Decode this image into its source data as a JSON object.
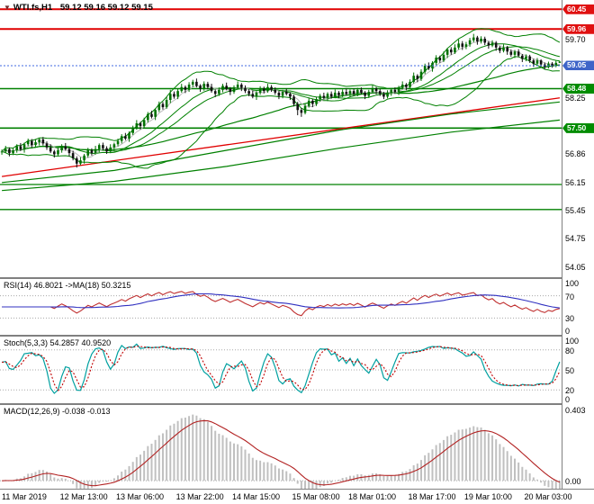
{
  "colors": {
    "bg": "#FFFFFF",
    "axis_text": "#000000",
    "frame": "#808080",
    "bull": "#007000",
    "bear": "#101010",
    "ma_fast": "#BBBBBB",
    "ma_green": "#008000",
    "bb": "#008000",
    "level_red": "#E00000",
    "level_green": "#008000",
    "bid": "#4169E1",
    "badge_red": "#E01010",
    "badge_green": "#008C00",
    "badge_blue": "#3E64C8",
    "rsi_line": "#C03030",
    "rsi_ma": "#3030C0",
    "stoch_k": "#00A0A0",
    "stoch_d": "#C00000",
    "macd_hist": "#C0C0C0",
    "macd_signal": "#B22222"
  },
  "main": {
    "title": "WTI.fs,H1",
    "ohlc": "59.12 59.16 59.12 59.15",
    "scale": {
      "max": 60.68,
      "min": 53.8
    },
    "axis_labels": [
      "59.70",
      "58.25",
      "56.86",
      "56.15",
      "55.45",
      "54.75",
      "54.05"
    ],
    "badges": [
      {
        "price": 60.45,
        "label": "60.45",
        "type": "red"
      },
      {
        "price": 59.96,
        "label": "59.96",
        "type": "red"
      },
      {
        "price": 59.05,
        "label": "59.05",
        "type": "blue"
      },
      {
        "price": 58.48,
        "label": "58.48",
        "type": "green"
      },
      {
        "price": 57.5,
        "label": "57.50",
        "type": "green"
      }
    ],
    "hlines": [
      {
        "price": 60.45,
        "color": "red",
        "width": 2
      },
      {
        "price": 59.96,
        "color": "red",
        "width": 2
      },
      {
        "price": 58.48,
        "color": "green",
        "width": 1.6
      },
      {
        "price": 57.5,
        "color": "green",
        "width": 1.6
      },
      {
        "price": 56.1,
        "color": "green",
        "width": 1.3
      },
      {
        "price": 55.48,
        "color": "green",
        "width": 1.3
      }
    ],
    "bid_line": 59.05,
    "trendline": {
      "from": [
        0,
        56.3
      ],
      "to": [
        149,
        58.25
      ],
      "color": "red"
    },
    "slow_lines": [
      {
        "points": [
          [
            0,
            56.15
          ],
          [
            30,
            56.45
          ],
          [
            60,
            56.95
          ],
          [
            90,
            57.45
          ],
          [
            120,
            57.85
          ],
          [
            149,
            58.15
          ]
        ]
      },
      {
        "points": [
          [
            0,
            55.95
          ],
          [
            30,
            56.18
          ],
          [
            60,
            56.55
          ],
          [
            90,
            57.0
          ],
          [
            120,
            57.4
          ],
          [
            149,
            57.7
          ]
        ]
      }
    ],
    "indicators": {
      "ma_fast": 5,
      "ma_mid": 13,
      "ma_slow": 55,
      "bb_period": 20,
      "bb_dev": 2
    }
  },
  "panels": {
    "rsi": {
      "label": "RSI(14) 46.8021 ->MA(18) 50.3215",
      "period": 14,
      "ma_period": 18,
      "levels": [
        70,
        30
      ],
      "scale": {
        "max": 100,
        "min": 0
      },
      "axis_labels": [
        {
          "text": "100",
          "value": 100
        },
        {
          "text": "70",
          "value": 70
        },
        {
          "text": "30",
          "value": 30
        },
        {
          "text": "0",
          "value": 0
        }
      ]
    },
    "stoch": {
      "label": "Stoch(5,3,3) 54.2857 40.9520",
      "k": 5,
      "slow": 3,
      "d": 3,
      "levels": [
        80,
        50,
        20
      ],
      "scale": {
        "max": 100,
        "min": 0
      },
      "axis_labels": [
        {
          "text": "100",
          "value": 100
        },
        {
          "text": "80",
          "value": 80
        },
        {
          "text": "50",
          "value": 50
        },
        {
          "text": "20",
          "value": 20
        },
        {
          "text": "0",
          "value": 0
        }
      ]
    },
    "macd": {
      "label": "MACD(12,26,9) -0.038 -0.013",
      "fast": 12,
      "slow": 26,
      "signal": 9,
      "levels": [
        0
      ],
      "scale": {
        "max": 0.428,
        "min": -0.045
      },
      "axis_labels": [
        {
          "text": "0.403",
          "value": 0.403
        },
        {
          "text": "0.00",
          "value": 0
        }
      ]
    }
  },
  "chart_data": {
    "type": "candlestick",
    "symbol": "WTI.fs",
    "timeframe": "H1",
    "title": "WTI.fs,H1 59.12 59.16 59.12 59.15",
    "ylim": [
      53.8,
      60.68
    ],
    "x_labels": [
      "11 Mar 2019",
      "12 Mar 13:00",
      "13 Mar 06:00",
      "13 Mar 22:00",
      "14 Mar 15:00",
      "15 Mar 08:00",
      "18 Mar 01:00",
      "18 Mar 17:00",
      "19 Mar 10:00",
      "20 Mar 03:00"
    ],
    "x_label_indices": [
      0,
      16,
      31,
      47,
      62,
      78,
      93,
      109,
      124,
      140
    ],
    "candles": [
      [
        56.9,
        56.97,
        56.84,
        56.92
      ],
      [
        56.92,
        57.06,
        56.88,
        56.98
      ],
      [
        56.98,
        57.02,
        56.8,
        56.88
      ],
      [
        56.88,
        57.01,
        56.83,
        56.95
      ],
      [
        56.95,
        57.1,
        56.89,
        57.05
      ],
      [
        57.05,
        57.13,
        56.93,
        56.97
      ],
      [
        56.97,
        57.14,
        56.89,
        57.1
      ],
      [
        57.1,
        57.24,
        57.05,
        57.18
      ],
      [
        57.18,
        57.23,
        57.02,
        57.08
      ],
      [
        57.08,
        57.23,
        57.04,
        57.15
      ],
      [
        57.15,
        57.26,
        57.07,
        57.22
      ],
      [
        57.22,
        57.28,
        57.07,
        57.12
      ],
      [
        57.12,
        57.17,
        56.96,
        57.02
      ],
      [
        57.02,
        57.1,
        56.88,
        56.92
      ],
      [
        56.92,
        56.96,
        56.77,
        56.85
      ],
      [
        56.85,
        57.01,
        56.8,
        56.95
      ],
      [
        56.95,
        57.1,
        56.89,
        57.05
      ],
      [
        57.05,
        57.13,
        56.94,
        56.98
      ],
      [
        56.98,
        57.02,
        56.8,
        56.88
      ],
      [
        56.88,
        56.94,
        56.7,
        56.75
      ],
      [
        56.75,
        56.8,
        56.52,
        56.62
      ],
      [
        56.62,
        56.78,
        56.58,
        56.7
      ],
      [
        56.7,
        56.86,
        56.62,
        56.82
      ],
      [
        56.82,
        57.01,
        56.77,
        56.95
      ],
      [
        56.95,
        57.0,
        56.82,
        56.88
      ],
      [
        56.88,
        57.06,
        56.84,
        56.98
      ],
      [
        56.98,
        57.12,
        56.9,
        57.08
      ],
      [
        57.08,
        57.14,
        56.95,
        57.0
      ],
      [
        57.0,
        57.05,
        56.86,
        56.92
      ],
      [
        56.92,
        57.1,
        56.88,
        57.02
      ],
      [
        57.02,
        57.14,
        56.94,
        57.1
      ],
      [
        57.1,
        57.24,
        57.05,
        57.18
      ],
      [
        57.18,
        57.35,
        57.12,
        57.3
      ],
      [
        57.3,
        57.38,
        57.2,
        57.24
      ],
      [
        57.24,
        57.42,
        57.16,
        57.38
      ],
      [
        57.38,
        57.56,
        57.33,
        57.5
      ],
      [
        57.5,
        57.7,
        57.46,
        57.62
      ],
      [
        57.62,
        57.66,
        57.47,
        57.55
      ],
      [
        57.55,
        57.76,
        57.5,
        57.7
      ],
      [
        57.7,
        57.9,
        57.64,
        57.85
      ],
      [
        57.85,
        57.93,
        57.74,
        57.78
      ],
      [
        57.78,
        57.99,
        57.7,
        57.95
      ],
      [
        57.95,
        58.16,
        57.9,
        58.1
      ],
      [
        58.1,
        58.15,
        57.96,
        58.02
      ],
      [
        58.02,
        58.28,
        57.98,
        58.2
      ],
      [
        58.2,
        58.45,
        58.12,
        58.35
      ],
      [
        58.35,
        58.41,
        58.23,
        58.28
      ],
      [
        58.28,
        58.47,
        58.22,
        58.42
      ],
      [
        58.42,
        58.6,
        58.38,
        58.52
      ],
      [
        58.52,
        58.56,
        58.37,
        58.45
      ],
      [
        58.45,
        58.64,
        58.4,
        58.58
      ],
      [
        58.58,
        58.7,
        58.52,
        58.65
      ],
      [
        58.65,
        58.73,
        58.51,
        58.55
      ],
      [
        58.55,
        58.59,
        58.4,
        58.48
      ],
      [
        58.48,
        58.66,
        58.43,
        58.6
      ],
      [
        58.6,
        58.65,
        58.46,
        58.52
      ],
      [
        58.52,
        58.6,
        58.38,
        58.42
      ],
      [
        58.42,
        58.46,
        58.27,
        58.35
      ],
      [
        58.35,
        58.51,
        58.3,
        58.45
      ],
      [
        58.45,
        58.6,
        58.39,
        58.55
      ],
      [
        58.55,
        58.63,
        58.44,
        58.48
      ],
      [
        58.48,
        58.52,
        58.32,
        58.4
      ],
      [
        58.4,
        58.56,
        58.35,
        58.5
      ],
      [
        58.5,
        58.66,
        58.46,
        58.58
      ],
      [
        58.58,
        58.62,
        58.42,
        58.5
      ],
      [
        58.5,
        58.56,
        58.37,
        58.42
      ],
      [
        58.42,
        58.47,
        58.29,
        58.35
      ],
      [
        58.35,
        58.43,
        58.24,
        58.28
      ],
      [
        58.28,
        58.42,
        58.2,
        58.38
      ],
      [
        58.38,
        58.54,
        58.33,
        58.48
      ],
      [
        58.48,
        58.53,
        58.36,
        58.42
      ],
      [
        58.42,
        58.6,
        58.38,
        58.52
      ],
      [
        58.52,
        58.57,
        58.4,
        58.45
      ],
      [
        58.45,
        58.51,
        58.33,
        58.38
      ],
      [
        58.38,
        58.42,
        58.22,
        58.3
      ],
      [
        58.3,
        58.45,
        58.24,
        58.4
      ],
      [
        58.4,
        58.48,
        58.31,
        58.35
      ],
      [
        58.35,
        58.39,
        58.2,
        58.28
      ],
      [
        58.28,
        58.33,
        58.04,
        58.1
      ],
      [
        58.1,
        58.15,
        57.82,
        57.95
      ],
      [
        57.95,
        58.0,
        57.78,
        57.88
      ],
      [
        57.88,
        58.1,
        57.84,
        58.05
      ],
      [
        58.05,
        58.26,
        58.01,
        58.18
      ],
      [
        58.18,
        58.22,
        58.02,
        58.1
      ],
      [
        58.1,
        58.28,
        58.05,
        58.22
      ],
      [
        58.22,
        58.35,
        58.16,
        58.3
      ],
      [
        58.3,
        58.38,
        58.21,
        58.25
      ],
      [
        58.25,
        58.39,
        58.17,
        58.35
      ],
      [
        58.35,
        58.41,
        58.23,
        58.28
      ],
      [
        58.28,
        58.46,
        58.24,
        58.38
      ],
      [
        58.38,
        58.42,
        58.24,
        58.32
      ],
      [
        58.32,
        58.46,
        58.27,
        58.4
      ],
      [
        58.4,
        58.48,
        58.31,
        58.35
      ],
      [
        58.35,
        58.46,
        58.27,
        58.42
      ],
      [
        58.42,
        58.48,
        58.3,
        58.35
      ],
      [
        58.35,
        58.5,
        58.29,
        58.45
      ],
      [
        58.45,
        58.51,
        58.34,
        58.38
      ],
      [
        58.38,
        58.42,
        58.22,
        58.3
      ],
      [
        58.3,
        58.45,
        58.25,
        58.4
      ],
      [
        58.4,
        58.56,
        58.36,
        58.48
      ],
      [
        58.48,
        58.52,
        58.34,
        58.42
      ],
      [
        58.42,
        58.47,
        58.3,
        58.35
      ],
      [
        58.35,
        58.4,
        58.22,
        58.28
      ],
      [
        58.28,
        58.44,
        58.24,
        58.38
      ],
      [
        58.38,
        58.49,
        58.3,
        58.45
      ],
      [
        58.45,
        58.51,
        58.35,
        58.4
      ],
      [
        58.4,
        58.55,
        58.32,
        58.5
      ],
      [
        58.5,
        58.66,
        58.46,
        58.58
      ],
      [
        58.58,
        58.62,
        58.44,
        58.52
      ],
      [
        58.52,
        58.71,
        58.47,
        58.65
      ],
      [
        58.65,
        58.88,
        58.61,
        58.8
      ],
      [
        58.8,
        58.84,
        58.64,
        58.72
      ],
      [
        58.72,
        58.96,
        58.67,
        58.9
      ],
      [
        58.9,
        59.1,
        58.84,
        59.05
      ],
      [
        59.05,
        59.13,
        58.94,
        58.98
      ],
      [
        58.98,
        59.16,
        58.9,
        59.12
      ],
      [
        59.12,
        59.31,
        59.07,
        59.25
      ],
      [
        59.25,
        59.3,
        59.12,
        59.18
      ],
      [
        59.18,
        59.4,
        59.14,
        59.32
      ],
      [
        59.32,
        59.49,
        59.24,
        59.45
      ],
      [
        59.45,
        59.51,
        59.32,
        59.38
      ],
      [
        59.38,
        59.58,
        59.34,
        59.5
      ],
      [
        59.5,
        59.7,
        59.45,
        59.6
      ],
      [
        59.6,
        59.66,
        59.44,
        59.52
      ],
      [
        59.52,
        59.64,
        59.46,
        59.58
      ],
      [
        59.58,
        59.74,
        59.52,
        59.68
      ],
      [
        59.68,
        59.84,
        59.63,
        59.75
      ],
      [
        59.75,
        59.79,
        59.57,
        59.65
      ],
      [
        59.65,
        59.78,
        59.6,
        59.72
      ],
      [
        59.72,
        59.77,
        59.56,
        59.62
      ],
      [
        59.62,
        59.66,
        59.47,
        59.55
      ],
      [
        59.55,
        59.68,
        59.51,
        59.62
      ],
      [
        59.62,
        59.66,
        59.42,
        59.5
      ],
      [
        59.5,
        59.54,
        59.36,
        59.42
      ],
      [
        59.42,
        59.58,
        59.38,
        59.5
      ],
      [
        59.5,
        59.54,
        59.32,
        59.4
      ],
      [
        59.4,
        59.45,
        59.27,
        59.32
      ],
      [
        59.32,
        59.44,
        59.24,
        59.4
      ],
      [
        59.4,
        59.46,
        59.26,
        59.3
      ],
      [
        59.3,
        59.34,
        59.14,
        59.22
      ],
      [
        59.22,
        59.33,
        59.16,
        59.28
      ],
      [
        59.28,
        59.32,
        59.12,
        59.18
      ],
      [
        59.18,
        59.22,
        59.02,
        59.1
      ],
      [
        59.1,
        59.24,
        59.06,
        59.18
      ],
      [
        59.18,
        59.21,
        59.02,
        59.08
      ],
      [
        59.08,
        59.13,
        58.96,
        59.02
      ],
      [
        59.02,
        59.15,
        58.98,
        59.1
      ],
      [
        59.1,
        59.14,
        59.0,
        59.05
      ],
      [
        59.05,
        59.17,
        59.01,
        59.12
      ],
      [
        59.12,
        59.16,
        59.12,
        59.15
      ]
    ]
  }
}
